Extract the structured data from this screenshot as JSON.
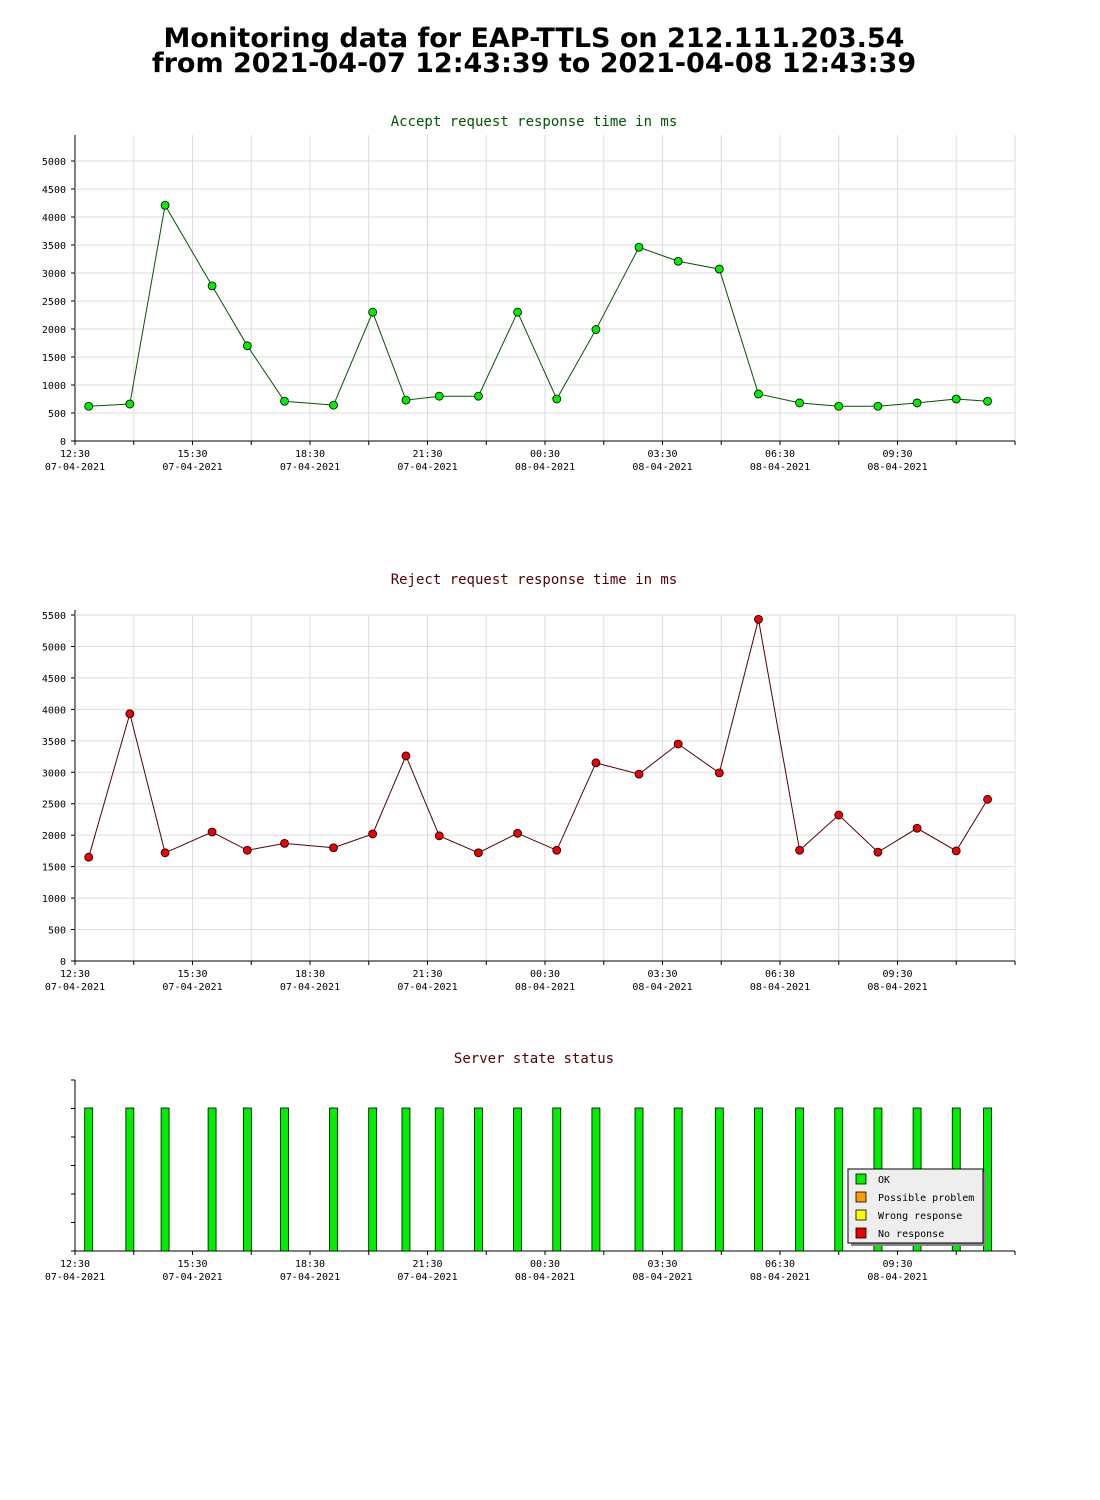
{
  "page": {
    "title_line1": "Monitoring data for EAP-TTLS on 212.111.203.54",
    "title_line2": "from 2021-04-07 12:43:39 to 2021-04-08 12:43:39"
  },
  "colors": {
    "accept_line": "#005500",
    "accept_marker": "#00ee00",
    "reject_line": "#550000",
    "reject_marker": "#ee0000",
    "ok": "#00ee00",
    "possible_problem": "#ff9900",
    "wrong_response": "#ffff00",
    "no_response": "#ee0000",
    "grid": "#dddddd"
  },
  "chart_data": [
    {
      "id": "accept",
      "type": "line",
      "title": "Accept request response time in ms",
      "x_unit": "hours since 12:30 07-04-2021",
      "x_ticks": [
        {
          "time": "12:30",
          "date": "07-04-2021"
        },
        {
          "time": "15:30",
          "date": "07-04-2021"
        },
        {
          "time": "18:30",
          "date": "07-04-2021"
        },
        {
          "time": "21:30",
          "date": "07-04-2021"
        },
        {
          "time": "00:30",
          "date": "08-04-2021"
        },
        {
          "time": "03:30",
          "date": "08-04-2021"
        },
        {
          "time": "06:30",
          "date": "08-04-2021"
        },
        {
          "time": "09:30",
          "date": "08-04-2021"
        }
      ],
      "y_ticks": [
        0,
        500,
        1000,
        1500,
        2000,
        2500,
        3000,
        3500,
        4000,
        4500,
        5000
      ],
      "ylim": [
        0,
        5400
      ],
      "grid": true,
      "x": [
        0.35,
        1.4,
        2.3,
        3.5,
        4.4,
        5.35,
        6.6,
        7.6,
        8.45,
        9.3,
        10.3,
        11.3,
        12.3,
        13.3,
        14.4,
        15.4,
        16.45,
        17.45,
        18.5,
        19.5,
        20.5,
        21.5,
        22.5,
        23.3
      ],
      "values": [
        620,
        660,
        4210,
        2770,
        1700,
        710,
        640,
        2300,
        730,
        800,
        800,
        2300,
        750,
        1990,
        3460,
        3210,
        3070,
        840,
        680,
        620,
        620,
        680,
        750,
        710
      ]
    },
    {
      "id": "reject",
      "type": "line",
      "title": "Reject request response time in ms",
      "x_unit": "hours since 12:30 07-04-2021",
      "x_ticks": [
        {
          "time": "12:30",
          "date": "07-04-2021"
        },
        {
          "time": "15:30",
          "date": "07-04-2021"
        },
        {
          "time": "18:30",
          "date": "07-04-2021"
        },
        {
          "time": "21:30",
          "date": "07-04-2021"
        },
        {
          "time": "00:30",
          "date": "08-04-2021"
        },
        {
          "time": "03:30",
          "date": "08-04-2021"
        },
        {
          "time": "06:30",
          "date": "08-04-2021"
        },
        {
          "time": "09:30",
          "date": "08-04-2021"
        }
      ],
      "y_ticks": [
        0,
        500,
        1000,
        1500,
        2000,
        2500,
        3000,
        3500,
        4000,
        4500,
        5000,
        5500
      ],
      "ylim": [
        0,
        5500
      ],
      "grid": true,
      "x": [
        0.35,
        1.4,
        2.3,
        3.5,
        4.4,
        5.35,
        6.6,
        7.6,
        8.45,
        9.3,
        10.3,
        11.3,
        12.3,
        13.3,
        14.4,
        15.4,
        16.45,
        17.45,
        18.5,
        19.5,
        20.5,
        21.5,
        22.5,
        23.3
      ],
      "values": [
        1650,
        3930,
        1720,
        2050,
        1760,
        1870,
        1800,
        2020,
        3260,
        1990,
        1720,
        2030,
        1760,
        3150,
        2970,
        3450,
        2990,
        5430,
        1760,
        2320,
        1730,
        2110,
        1750,
        2570
      ]
    },
    {
      "id": "status",
      "type": "bar",
      "title": "Server state status",
      "x_unit": "hours since 12:30 07-04-2021",
      "x_ticks": [
        {
          "time": "12:30",
          "date": "07-04-2021"
        },
        {
          "time": "15:30",
          "date": "07-04-2021"
        },
        {
          "time": "18:30",
          "date": "07-04-2021"
        },
        {
          "time": "21:30",
          "date": "07-04-2021"
        },
        {
          "time": "00:30",
          "date": "08-04-2021"
        },
        {
          "time": "03:30",
          "date": "08-04-2021"
        },
        {
          "time": "06:30",
          "date": "08-04-2021"
        },
        {
          "time": "09:30",
          "date": "08-04-2021"
        }
      ],
      "grid": false,
      "legend_position": "bottom-right",
      "legend": [
        {
          "label": "OK",
          "color_key": "ok"
        },
        {
          "label": "Possible problem",
          "color_key": "possible_problem"
        },
        {
          "label": "Wrong response",
          "color_key": "wrong_response"
        },
        {
          "label": "No response",
          "color_key": "no_response"
        }
      ],
      "x": [
        0.35,
        1.4,
        2.3,
        3.5,
        4.4,
        5.35,
        6.6,
        7.6,
        8.45,
        9.3,
        10.3,
        11.3,
        12.3,
        13.3,
        14.4,
        15.4,
        16.45,
        17.45,
        18.5,
        19.5,
        20.5,
        21.5,
        22.5,
        23.3
      ],
      "states": [
        "OK",
        "OK",
        "OK",
        "OK",
        "OK",
        "OK",
        "OK",
        "OK",
        "OK",
        "OK",
        "OK",
        "OK",
        "OK",
        "OK",
        "OK",
        "OK",
        "OK",
        "OK",
        "OK",
        "OK",
        "OK",
        "OK",
        "OK",
        "OK"
      ]
    }
  ]
}
